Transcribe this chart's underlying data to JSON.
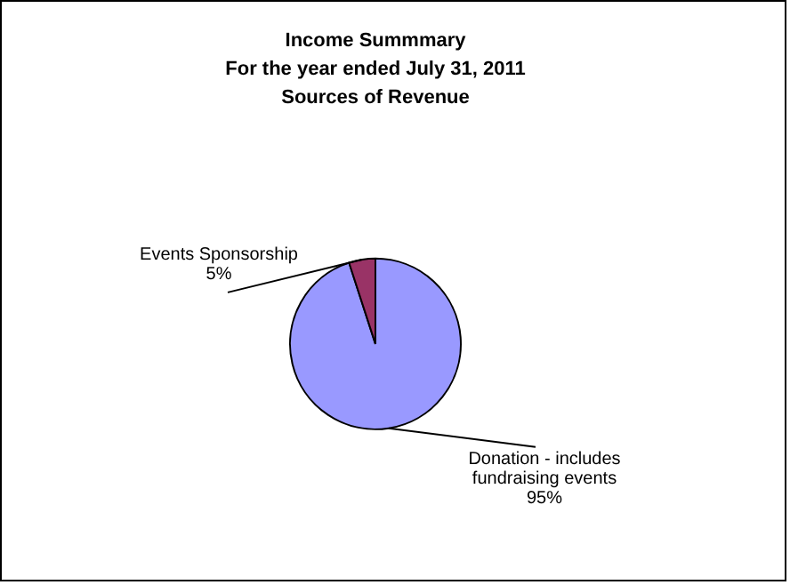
{
  "chart_data": {
    "type": "pie",
    "title": "Income Summmary\nFor the year ended July 31, 2011\nSources of Revenue",
    "categories": [
      "Donation - includes fundraising events",
      "Events Sponsorship"
    ],
    "values": [
      95,
      5
    ],
    "colors": [
      "#9999ff",
      "#993366"
    ],
    "value_labels": [
      "95%",
      "5%"
    ],
    "legend": false
  }
}
